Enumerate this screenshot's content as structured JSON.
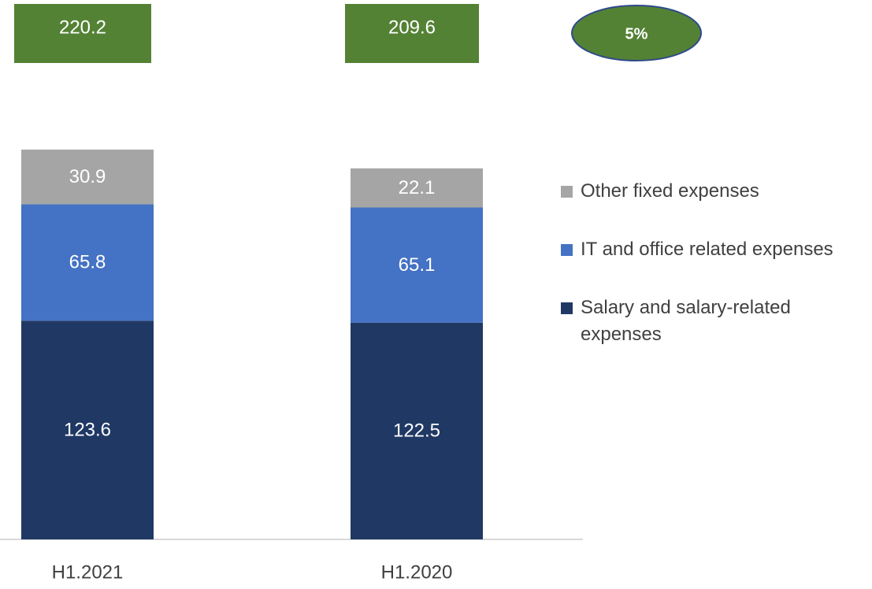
{
  "chart_data": {
    "type": "stacked_bar",
    "categories": [
      "H1.2021",
      "H1.2020"
    ],
    "series": [
      {
        "name": "Salary and salary-related expenses",
        "color": "#203864",
        "values": [
          123.6,
          122.5
        ]
      },
      {
        "name": "IT and office related expenses",
        "color": "#4472c4",
        "values": [
          65.8,
          65.1
        ]
      },
      {
        "name": "Other fixed expenses",
        "color": "#a5a5a5",
        "values": [
          30.9,
          22.1
        ]
      }
    ],
    "totals": [
      220.2,
      209.6
    ],
    "totals_color": "#548235",
    "annotation": "5%",
    "legend": "right"
  }
}
